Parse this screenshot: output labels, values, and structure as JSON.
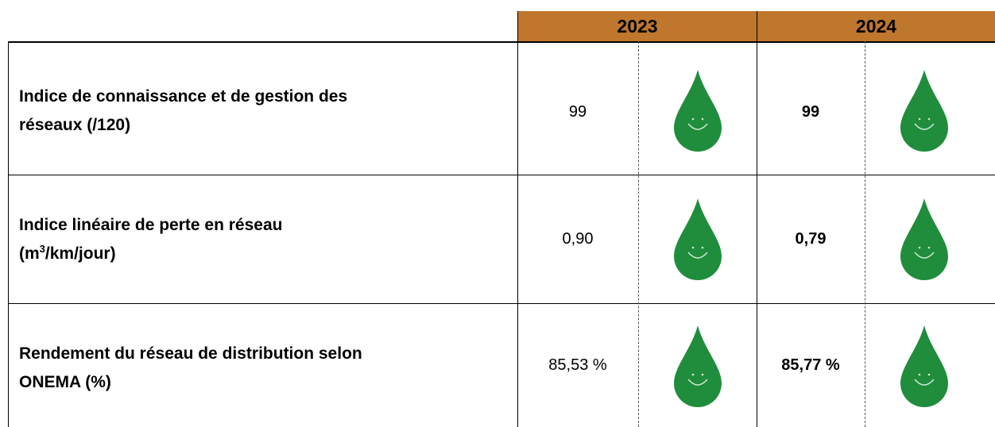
{
  "header": {
    "years": [
      "2023",
      "2024"
    ]
  },
  "rows": [
    {
      "label_lines": [
        "Indice de connaissance et de gestion des",
        "réseaux (/120)"
      ],
      "value_2023": "99",
      "value_2024": "99"
    },
    {
      "label_lines": [
        "Indice linéaire de perte en réseau"
      ],
      "label_unit": [
        "(m",
        "3",
        "/km/jour)"
      ],
      "value_2023": "0,90",
      "value_2024": "0,79"
    },
    {
      "label_lines": [
        "Rendement du réseau de distribution selon",
        "ONEMA (%)"
      ],
      "value_2023": "85,53 %",
      "value_2024": "85,77 %"
    }
  ]
}
